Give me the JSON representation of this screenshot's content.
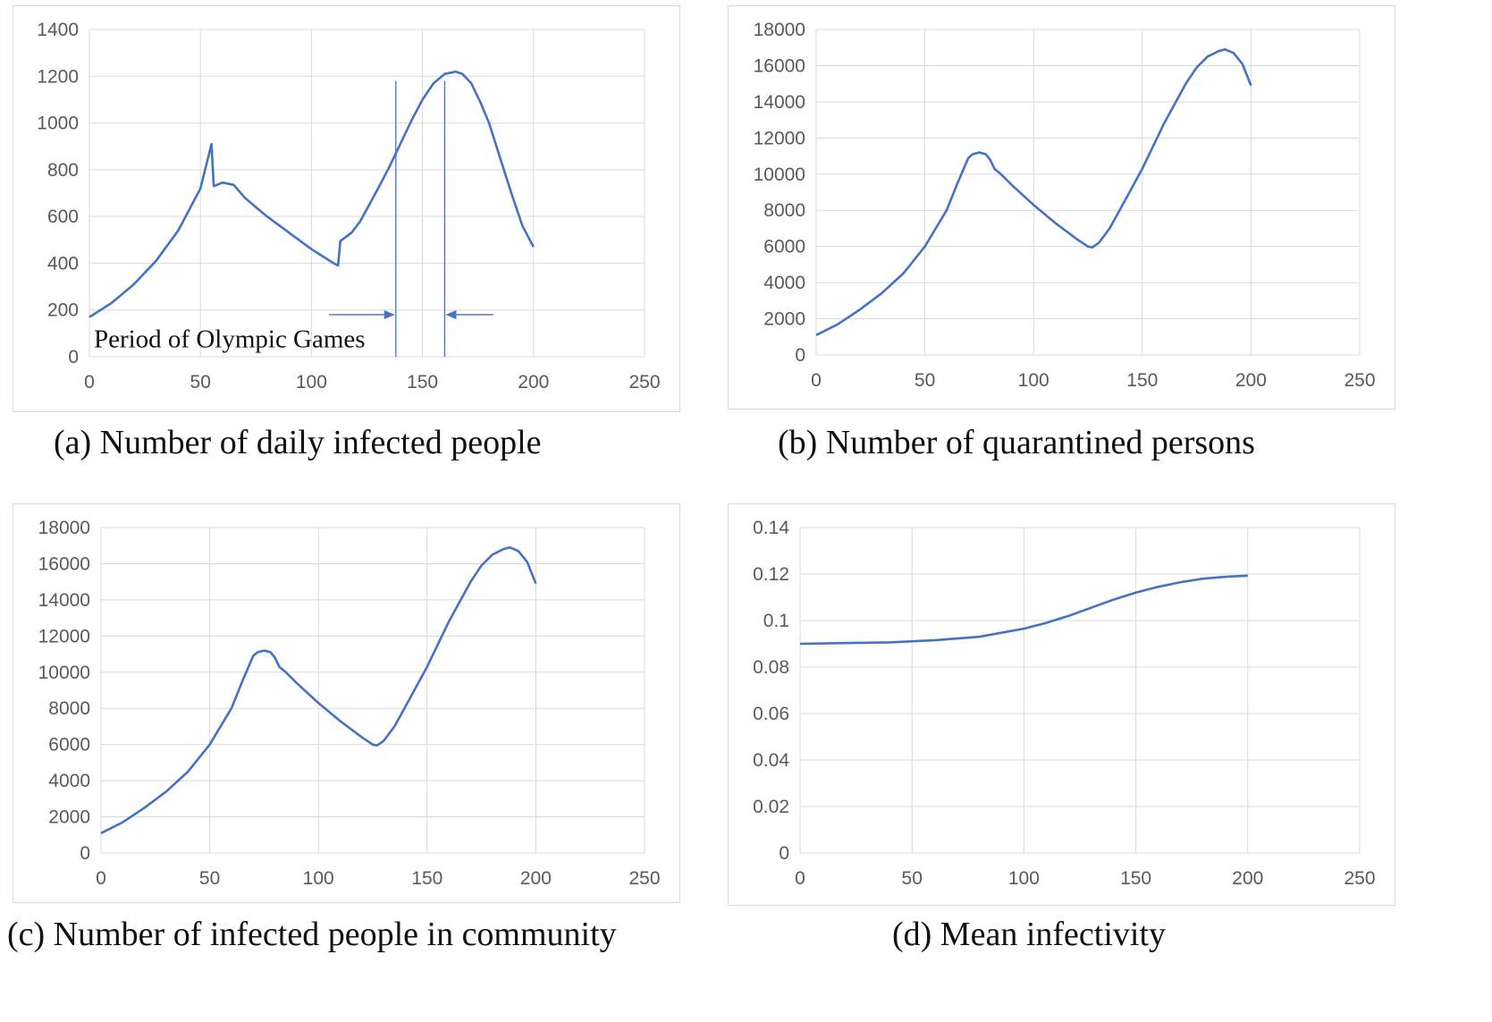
{
  "figure": {
    "captions": [
      "(a) Number of daily infected people",
      "(b) Number of quarantined persons",
      "(c) Number of infected people in community",
      "(d) Mean infectivity"
    ]
  },
  "annotation": {
    "text": "Period of Olympic Games",
    "start_x": 138,
    "end_x": 160
  },
  "colors": {
    "series": "#4472c4",
    "grid": "#d9d9d9",
    "tick_text": "#595959"
  },
  "chart_data": [
    {
      "type": "line",
      "title": "",
      "xlabel": "",
      "ylabel": "",
      "xlim": [
        0,
        250
      ],
      "ylim": [
        0,
        1400
      ],
      "xticks": [
        0,
        50,
        100,
        150,
        200,
        250
      ],
      "yticks": [
        0,
        200,
        400,
        600,
        800,
        1000,
        1200,
        1400
      ],
      "grid": true,
      "legend": "none",
      "x": [
        0,
        10,
        20,
        30,
        40,
        50,
        55,
        56,
        60,
        65,
        70,
        75,
        80,
        90,
        100,
        110,
        112,
        113,
        118,
        122,
        126,
        130,
        135,
        140,
        145,
        150,
        155,
        160,
        165,
        168,
        172,
        176,
        180,
        185,
        190,
        195,
        200
      ],
      "y": [
        170,
        230,
        310,
        410,
        540,
        720,
        910,
        730,
        745,
        735,
        680,
        640,
        600,
        530,
        460,
        400,
        390,
        495,
        530,
        580,
        650,
        720,
        810,
        910,
        1010,
        1100,
        1170,
        1210,
        1220,
        1210,
        1170,
        1090,
        1000,
        850,
        700,
        560,
        470
      ]
    },
    {
      "type": "line",
      "title": "",
      "xlabel": "",
      "ylabel": "",
      "xlim": [
        0,
        250
      ],
      "ylim": [
        0,
        18000
      ],
      "xticks": [
        0,
        50,
        100,
        150,
        200,
        250
      ],
      "yticks": [
        0,
        2000,
        4000,
        6000,
        8000,
        10000,
        12000,
        14000,
        16000,
        18000
      ],
      "grid": true,
      "legend": "none",
      "x": [
        0,
        10,
        20,
        30,
        40,
        50,
        60,
        65,
        70,
        72,
        75,
        78,
        80,
        82,
        85,
        90,
        100,
        110,
        120,
        125,
        127,
        130,
        135,
        140,
        150,
        160,
        170,
        175,
        180,
        185,
        188,
        192,
        196,
        200
      ],
      "y": [
        1100,
        1700,
        2500,
        3400,
        4500,
        6000,
        8000,
        9500,
        10900,
        11100,
        11200,
        11100,
        10800,
        10300,
        10000,
        9400,
        8300,
        7300,
        6400,
        6000,
        5950,
        6200,
        7000,
        8100,
        10300,
        12800,
        15000,
        15900,
        16500,
        16800,
        16900,
        16700,
        16100,
        14900
      ]
    },
    {
      "type": "line",
      "title": "",
      "xlabel": "",
      "ylabel": "",
      "xlim": [
        0,
        250
      ],
      "ylim": [
        0,
        18000
      ],
      "xticks": [
        0,
        50,
        100,
        150,
        200,
        250
      ],
      "yticks": [
        0,
        2000,
        4000,
        6000,
        8000,
        10000,
        12000,
        14000,
        16000,
        18000
      ],
      "grid": true,
      "legend": "none",
      "x": [
        0,
        10,
        20,
        30,
        40,
        50,
        60,
        65,
        70,
        72,
        75,
        78,
        80,
        82,
        85,
        90,
        100,
        110,
        120,
        125,
        127,
        130,
        135,
        140,
        150,
        160,
        170,
        175,
        180,
        185,
        188,
        192,
        196,
        200
      ],
      "y": [
        1100,
        1700,
        2500,
        3400,
        4500,
        6000,
        8000,
        9500,
        10900,
        11100,
        11200,
        11100,
        10800,
        10300,
        10000,
        9400,
        8300,
        7300,
        6400,
        6000,
        5950,
        6200,
        7000,
        8100,
        10300,
        12800,
        15000,
        15900,
        16500,
        16800,
        16900,
        16700,
        16100,
        14900
      ]
    },
    {
      "type": "line",
      "title": "",
      "xlabel": "",
      "ylabel": "",
      "xlim": [
        0,
        250
      ],
      "ylim": [
        0,
        0.14
      ],
      "xticks": [
        0,
        50,
        100,
        150,
        200,
        250
      ],
      "yticks": [
        0,
        0.02,
        0.04,
        0.06,
        0.08,
        0.1,
        0.12,
        0.14
      ],
      "grid": true,
      "legend": "none",
      "x": [
        0,
        20,
        40,
        60,
        80,
        100,
        110,
        120,
        130,
        140,
        150,
        160,
        170,
        180,
        190,
        200
      ],
      "y": [
        0.09,
        0.0903,
        0.0906,
        0.0915,
        0.093,
        0.0965,
        0.099,
        0.102,
        0.1055,
        0.109,
        0.112,
        0.1145,
        0.1165,
        0.118,
        0.1188,
        0.1193
      ]
    }
  ]
}
